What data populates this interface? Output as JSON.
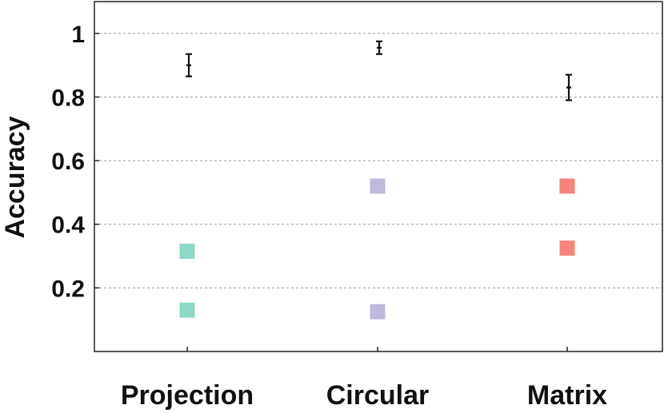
{
  "chart_data": {
    "type": "scatter",
    "ylabel": "Accuracy",
    "xlabel": "",
    "ylim": [
      0.0,
      1.1
    ],
    "yticks": [
      0.2,
      0.4,
      0.6,
      0.8,
      1.0
    ],
    "ytick_labels": [
      "0.2",
      "0.4",
      "0.6",
      "0.8",
      "1"
    ],
    "grid": "horizontal-dashed",
    "categories": [
      "Projection",
      "Circular",
      "Matrix"
    ],
    "category_colors": [
      "#8fd8c8",
      "#bfbadb",
      "#f7837a"
    ],
    "points": [
      {
        "category": "Projection",
        "values": [
          0.13,
          0.315
        ]
      },
      {
        "category": "Circular",
        "values": [
          0.125,
          0.52
        ]
      },
      {
        "category": "Matrix",
        "values": [
          0.325,
          0.52
        ]
      }
    ],
    "error_bars": [
      {
        "category": "Projection",
        "value": 0.9,
        "lower": 0.865,
        "upper": 0.935
      },
      {
        "category": "Circular",
        "value": 0.955,
        "lower": 0.935,
        "upper": 0.975
      },
      {
        "category": "Matrix",
        "value": 0.83,
        "lower": 0.79,
        "upper": 0.87
      }
    ]
  }
}
